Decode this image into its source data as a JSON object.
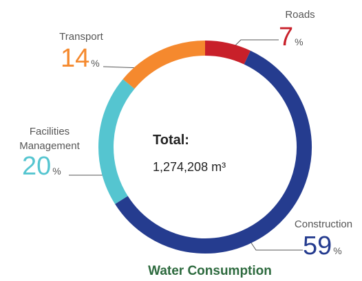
{
  "chart_data": {
    "type": "donut",
    "title": "Water Consumption",
    "center_label": "Total:",
    "center_value": "1,274,208 m³",
    "unit": "%",
    "categories": [
      "Roads",
      "Construction",
      "Facilities Management",
      "Transport"
    ],
    "values": [
      7,
      59,
      20,
      14
    ],
    "colors": [
      "#c8202a",
      "#253c8f",
      "#55c5d0",
      "#f5892e"
    ]
  }
}
